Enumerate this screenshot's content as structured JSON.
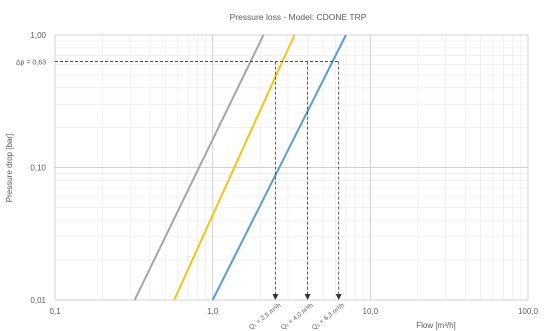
{
  "chart_data": {
    "type": "line",
    "title": "Pressure loss - Model: CDONE TRP",
    "xlabel": "Flow [m³/h]",
    "ylabel": "Pressure drop [bar]",
    "x_scale": "log",
    "y_scale": "log",
    "xlim": [
      0.1,
      100
    ],
    "ylim": [
      0.01,
      1
    ],
    "x_ticks": [
      "0,1",
      "1,0",
      "10,0",
      "100,0"
    ],
    "y_ticks": [
      "0,01",
      "0,10",
      "1,00"
    ],
    "grid": true,
    "series": [
      {
        "color": "#a5a5a5",
        "x": [
          0.32,
          2.1
        ],
        "y": [
          0.01,
          1.0
        ]
      },
      {
        "color": "#f2c418",
        "x": [
          0.57,
          3.3
        ],
        "y": [
          0.01,
          1.0
        ]
      },
      {
        "color": "#5b9bd5",
        "x": [
          1.0,
          7.0
        ],
        "y": [
          0.01,
          1.0
        ]
      }
    ],
    "reference": {
      "dp_value": 0.63,
      "dp_label": "Δp = 0,63",
      "flows": [
        {
          "x": 2.5,
          "label": "Q₁ = 2,5 m³/h"
        },
        {
          "x": 4.0,
          "label": "Q₂ = 4,0 m³/h"
        },
        {
          "x": 6.3,
          "label": "Q₃ = 6,3 m³/h"
        }
      ]
    }
  }
}
